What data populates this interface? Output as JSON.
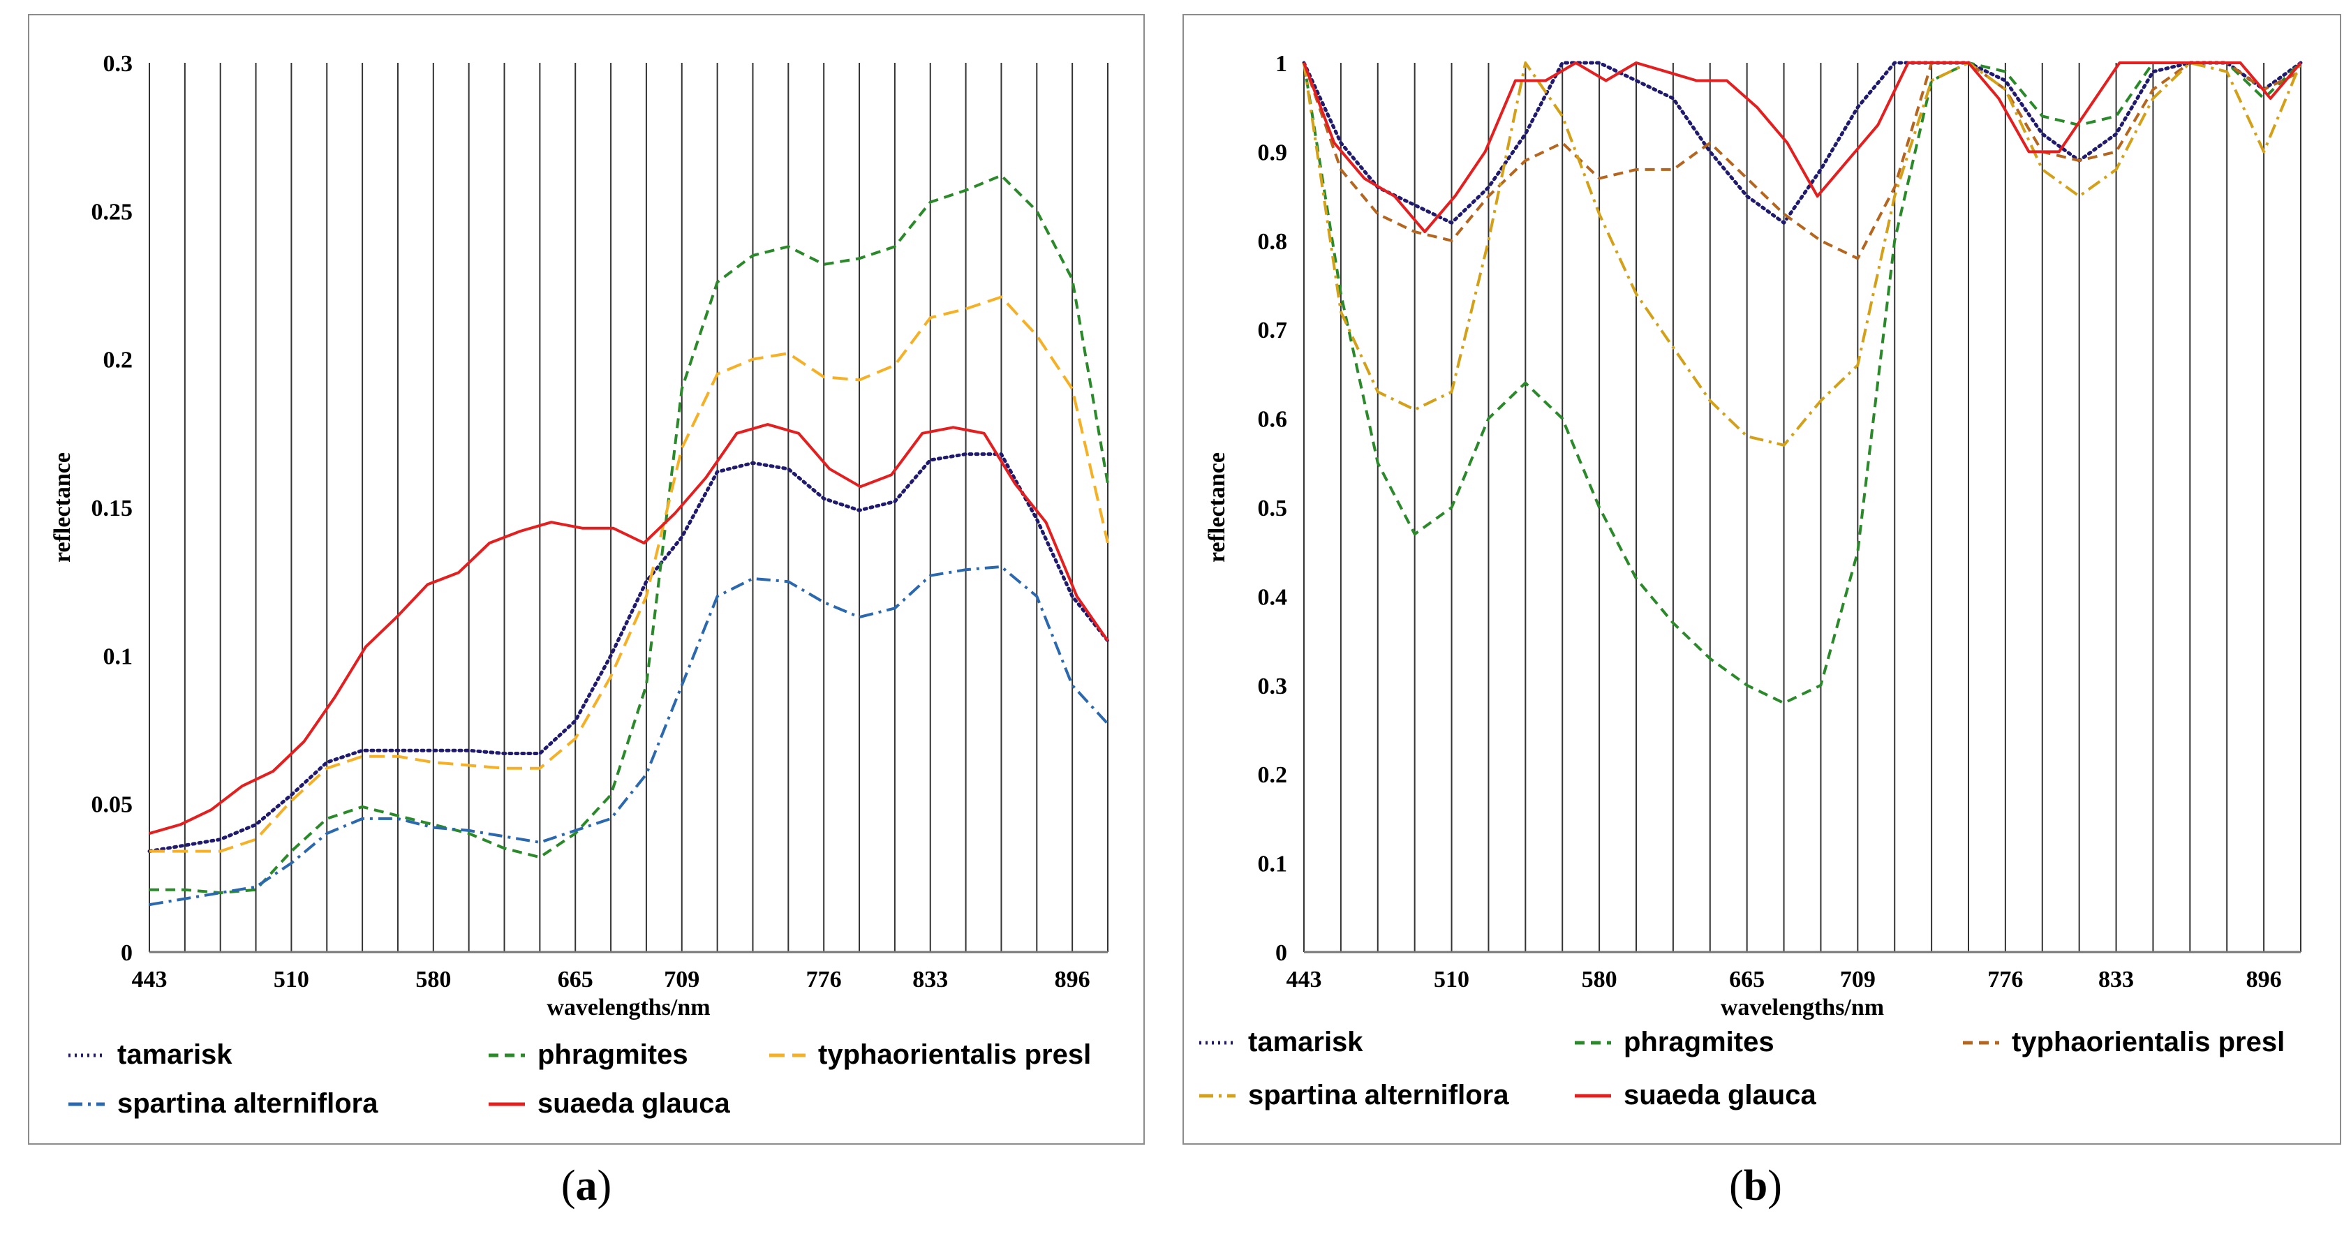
{
  "chart_data": [
    {
      "type": "line",
      "panel": "a",
      "caption": "a",
      "title": "",
      "xlabel": "wavelengths/nm",
      "ylabel": "reflectance",
      "x_tick_labels": [
        "443",
        "510",
        "580",
        "665",
        "709",
        "776",
        "833",
        "896"
      ],
      "y_tick_labels": [
        "0",
        "0.05",
        "0.1",
        "0.15",
        "0.2",
        "0.25",
        "0.3"
      ],
      "ylim": [
        0,
        0.3
      ],
      "band_count": 28,
      "grid": "vertical lines at each band",
      "legend_position": "bottom",
      "series": [
        {
          "name": "tamarisk",
          "color": "#1f1a6e",
          "dash": "dotted",
          "values": [
            0.034,
            0.036,
            0.038,
            0.043,
            0.053,
            0.064,
            0.068,
            0.068,
            0.068,
            0.068,
            0.067,
            0.067,
            0.078,
            0.1,
            0.125,
            0.14,
            0.162,
            0.165,
            0.163,
            0.153,
            0.149,
            0.152,
            0.166,
            0.168,
            0.168,
            0.146,
            0.12,
            0.105
          ]
        },
        {
          "name": "phragmites",
          "color": "#2a8a2a",
          "dash": "dashed",
          "values": [
            0.021,
            0.021,
            0.02,
            0.021,
            0.034,
            0.045,
            0.049,
            0.046,
            0.043,
            0.04,
            0.035,
            0.032,
            0.04,
            0.053,
            0.09,
            0.19,
            0.226,
            0.235,
            0.238,
            0.232,
            0.234,
            0.238,
            0.253,
            0.257,
            0.262,
            0.25,
            0.227,
            0.158
          ]
        },
        {
          "name": "typhaorientalis presl",
          "color": "#f5b025",
          "dash": "longdash",
          "values": [
            0.034,
            0.034,
            0.034,
            0.038,
            0.051,
            0.062,
            0.066,
            0.066,
            0.064,
            0.063,
            0.062,
            0.062,
            0.072,
            0.093,
            0.12,
            0.17,
            0.195,
            0.2,
            0.202,
            0.194,
            0.193,
            0.198,
            0.214,
            0.217,
            0.221,
            0.208,
            0.19,
            0.138
          ]
        },
        {
          "name": "spartina alterniflora",
          "color": "#2a68b0",
          "dash": "dashdot",
          "values": [
            0.016,
            0.018,
            0.02,
            0.022,
            0.03,
            0.04,
            0.045,
            0.045,
            0.042,
            0.041,
            0.039,
            0.037,
            0.041,
            0.045,
            0.06,
            0.09,
            0.12,
            0.126,
            0.125,
            0.118,
            0.113,
            0.116,
            0.127,
            0.129,
            0.13,
            0.12,
            0.09,
            0.077
          ]
        },
        {
          "name": "suaeda glauca",
          "color": "#e41f1f",
          "dash": "solid",
          "values": [
            0.04,
            0.043,
            0.048,
            0.056,
            0.061,
            0.071,
            0.086,
            0.103,
            0.113,
            0.124,
            0.128,
            0.138,
            0.142,
            0.145,
            0.143,
            0.143,
            0.138,
            0.148,
            0.16,
            0.175,
            0.178,
            0.175,
            0.163,
            0.157,
            0.161,
            0.175,
            0.177,
            0.175,
            0.158,
            0.145,
            0.12,
            0.105
          ]
        }
      ],
      "suaeda_glauca_band_count": 32
    },
    {
      "type": "line",
      "panel": "b",
      "caption": "b",
      "title": "",
      "xlabel": "wavelengths/nm",
      "ylabel": "reflectance",
      "x_tick_labels": [
        "443",
        "510",
        "580",
        "665",
        "709",
        "776",
        "833",
        "896"
      ],
      "y_tick_labels": [
        "0",
        "0.1",
        "0.2",
        "0.3",
        "0.4",
        "0.5",
        "0.6",
        "0.7",
        "0.8",
        "0.9",
        "1"
      ],
      "ylim": [
        0,
        1
      ],
      "band_count": 28,
      "grid": "vertical lines at each band",
      "legend_position": "bottom",
      "series": [
        {
          "name": "tamarisk",
          "color": "#1f1a6e",
          "dash": "dotted",
          "values": [
            1.0,
            0.91,
            0.86,
            0.84,
            0.82,
            0.86,
            0.92,
            1.0,
            1.0,
            0.98,
            0.96,
            0.9,
            0.85,
            0.82,
            0.88,
            0.95,
            1.0,
            1.0,
            1.0,
            0.98,
            0.92,
            0.89,
            0.92,
            0.99,
            1.0,
            1.0,
            0.97,
            1.0
          ]
        },
        {
          "name": "phragmites",
          "color": "#2a8a2a",
          "dash": "dashed",
          "values": [
            1.0,
            0.74,
            0.55,
            0.47,
            0.5,
            0.6,
            0.64,
            0.6,
            0.5,
            0.42,
            0.37,
            0.33,
            0.3,
            0.28,
            0.3,
            0.45,
            0.8,
            0.98,
            1.0,
            0.99,
            0.94,
            0.93,
            0.94,
            1.0,
            1.0,
            1.0,
            0.96,
            1.0
          ]
        },
        {
          "name": "typhaorientalis presl",
          "color": "#b5651d",
          "dash": "dashed",
          "values": [
            1.0,
            0.88,
            0.83,
            0.81,
            0.8,
            0.85,
            0.89,
            0.91,
            0.87,
            0.88,
            0.88,
            0.91,
            0.87,
            0.83,
            0.8,
            0.78,
            0.86,
            1.0,
            1.0,
            0.97,
            0.9,
            0.89,
            0.9,
            0.97,
            1.0,
            1.0,
            0.97,
            0.99
          ]
        },
        {
          "name": "spartina alterniflora",
          "color": "#d4a017",
          "dash": "dashdot",
          "values": [
            1.0,
            0.72,
            0.63,
            0.61,
            0.63,
            0.8,
            1.0,
            0.94,
            0.83,
            0.74,
            0.68,
            0.62,
            0.58,
            0.57,
            0.62,
            0.66,
            0.85,
            0.98,
            1.0,
            0.97,
            0.88,
            0.85,
            0.88,
            0.96,
            1.0,
            0.99,
            0.9,
            1.0
          ]
        },
        {
          "name": "suaeda glauca",
          "color": "#e41f1f",
          "dash": "solid",
          "values": [
            1.0,
            0.91,
            0.87,
            0.85,
            0.81,
            0.85,
            0.9,
            0.98,
            0.98,
            1.0,
            0.98,
            1.0,
            0.99,
            0.98,
            0.98,
            0.95,
            0.91,
            0.85,
            0.89,
            0.93,
            1.0,
            1.0,
            1.0,
            0.96,
            0.9,
            0.9,
            0.95,
            1.0,
            1.0,
            1.0,
            1.0,
            1.0,
            0.96,
            1.0
          ]
        }
      ],
      "suaeda_glauca_band_count": 34
    }
  ]
}
